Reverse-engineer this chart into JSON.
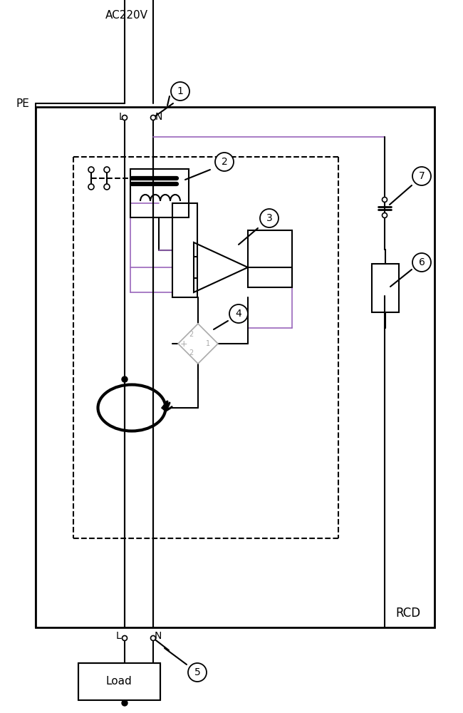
{
  "background_color": "#ffffff",
  "line_color": "#000000",
  "gray_color": "#aaaaaa",
  "purple_color": "#9966bb",
  "ac_label": "AC220V",
  "pe_label": "PE",
  "l_label": "L",
  "n_label": "N",
  "rcd_label": "RCD",
  "load_label": "Load",
  "figsize": [
    6.5,
    10.0
  ],
  "dpi": 100
}
